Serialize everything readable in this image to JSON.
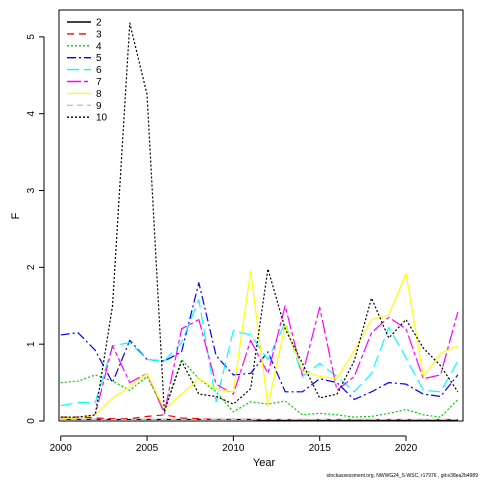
{
  "chart_data": {
    "type": "line",
    "xlabel": "Year",
    "ylabel": "F",
    "xlim": [
      1999.9,
      2023.3
    ],
    "ylim": [
      0,
      5.35
    ],
    "x_ticks": [
      2000,
      2005,
      2010,
      2015,
      2020
    ],
    "y_ticks": [
      0,
      1,
      2,
      3,
      4,
      5
    ],
    "legend_position": "top-left",
    "grid": false,
    "x": [
      2000,
      2001,
      2002,
      2003,
      2004,
      2005,
      2006,
      2007,
      2008,
      2009,
      2010,
      2011,
      2012,
      2013,
      2014,
      2015,
      2016,
      2017,
      2018,
      2019,
      2020,
      2021,
      2022,
      2023
    ],
    "series": [
      {
        "name": "2",
        "color": "#000000",
        "dash": "",
        "values": [
          0.02,
          0.02,
          0.02,
          0.02,
          0.02,
          0.02,
          0.02,
          0.02,
          0.02,
          0.02,
          0.02,
          0.02,
          0.01,
          0.01,
          0.01,
          0.01,
          0.01,
          0.01,
          0.01,
          0.01,
          0.01,
          0.01,
          0.01,
          0.01
        ]
      },
      {
        "name": "3",
        "color": "#ff0000",
        "dash": "7,5",
        "values": [
          0.05,
          0.05,
          0.04,
          0.03,
          0.03,
          0.06,
          0.08,
          0.04,
          0.03,
          0.02,
          0.02,
          0.02,
          0.02,
          0.02,
          0.02,
          0.02,
          0.02,
          0.02,
          0.02,
          0.02,
          0.02,
          0.02,
          0.02,
          0.02
        ]
      },
      {
        "name": "4",
        "color": "#00cc00",
        "dash": "2,2",
        "values": [
          0.5,
          0.52,
          0.6,
          0.52,
          0.4,
          0.58,
          0.14,
          0.8,
          0.55,
          0.38,
          0.12,
          0.25,
          0.22,
          0.26,
          0.08,
          0.1,
          0.08,
          0.05,
          0.06,
          0.1,
          0.15,
          0.08,
          0.05,
          0.28
        ]
      },
      {
        "name": "5",
        "color": "#0000ff",
        "dash": "9,3,2,3",
        "values": [
          1.12,
          1.15,
          0.92,
          0.5,
          1.05,
          0.8,
          0.78,
          0.9,
          1.8,
          0.85,
          0.6,
          0.62,
          0.9,
          0.38,
          0.38,
          0.55,
          0.5,
          0.28,
          0.38,
          0.5,
          0.48,
          0.35,
          0.32,
          0.6
        ]
      },
      {
        "name": "6",
        "color": "#00ffff",
        "dash": "12,5",
        "values": [
          0.2,
          0.24,
          0.24,
          0.98,
          1.02,
          0.8,
          0.78,
          1.02,
          1.58,
          0.25,
          1.18,
          1.12,
          0.8,
          1.28,
          0.58,
          0.75,
          0.58,
          0.38,
          0.62,
          1.22,
          0.82,
          0.4,
          0.38,
          0.78
        ]
      },
      {
        "name": "7",
        "color": "#ff00ff",
        "dash": "14,3,4,3",
        "values": [
          0.03,
          0.04,
          0.08,
          0.98,
          0.5,
          0.62,
          0.1,
          1.2,
          1.32,
          0.48,
          0.35,
          1.05,
          0.62,
          1.5,
          0.6,
          1.48,
          0.4,
          0.58,
          1.15,
          1.35,
          1.2,
          0.55,
          0.6,
          1.42
        ]
      },
      {
        "name": "8",
        "color": "#ffff00",
        "dash": "",
        "values": [
          0.03,
          0.04,
          0.08,
          0.3,
          0.45,
          0.62,
          0.15,
          0.35,
          0.55,
          0.42,
          0.38,
          1.95,
          0.2,
          1.25,
          0.65,
          0.58,
          0.55,
          0.92,
          1.32,
          1.38,
          1.92,
          0.58,
          0.88,
          0.98
        ]
      },
      {
        "name": "9",
        "color": "#c0c0c0",
        "dash": "6,4",
        "values": [
          0.02,
          0.02,
          0.02,
          0.02,
          0.02,
          0.02,
          0.02,
          0.02,
          0.02,
          0.02,
          0.02,
          0.02,
          0.02,
          0.02,
          0.02,
          0.02,
          0.02,
          0.02,
          0.02,
          0.02,
          0.02,
          0.02,
          0.02,
          0.02
        ]
      },
      {
        "name": "10",
        "color": "#000000",
        "dash": "2,2",
        "values": [
          0.05,
          0.05,
          0.08,
          1.5,
          5.18,
          4.25,
          0.12,
          0.78,
          0.35,
          0.32,
          0.22,
          0.42,
          1.98,
          1.2,
          0.75,
          0.3,
          0.35,
          0.78,
          1.6,
          1.08,
          1.32,
          0.95,
          0.72,
          0.38
        ]
      }
    ]
  },
  "footnote": "stockassessment.org, NWWG24_S-WSC, r17976 , git:e38ea2b4989"
}
